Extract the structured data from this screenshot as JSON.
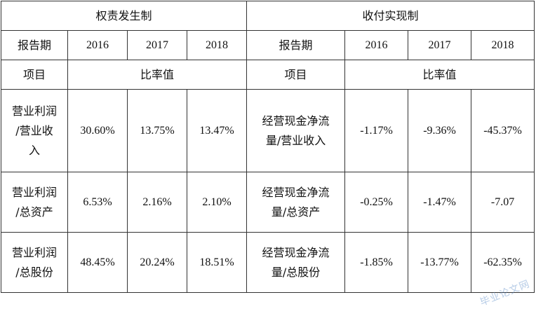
{
  "table": {
    "accrual_header": "权责发生制",
    "cash_header": "收付实现制",
    "period_label": "报告期",
    "years": [
      "2016",
      "2017",
      "2018"
    ],
    "item_label": "项目",
    "ratio_label": "比率值",
    "rows": [
      {
        "accrual_item_lines": [
          "营业利润",
          "/营业收",
          "入"
        ],
        "accrual_values": [
          "30.60%",
          "13.75%",
          "13.47%"
        ],
        "cash_item_lines": [
          "经营现金净流",
          "量/营业收入"
        ],
        "cash_values": [
          "-1.17%",
          "-9.36%",
          "-45.37%"
        ]
      },
      {
        "accrual_item_lines": [
          "营业利润",
          "/总资产"
        ],
        "accrual_values": [
          "6.53%",
          "2.16%",
          "2.10%"
        ],
        "cash_item_lines": [
          "经营现金净流",
          "量/总资产"
        ],
        "cash_values": [
          "-0.25%",
          "-1.47%",
          "-7.07"
        ]
      },
      {
        "accrual_item_lines": [
          "营业利润",
          "/总股份"
        ],
        "accrual_values": [
          "48.45%",
          "20.24%",
          "18.51%"
        ],
        "cash_item_lines": [
          "经营现金净流",
          "量/总股份"
        ],
        "cash_values": [
          "-1.85%",
          "-13.77%",
          "-62.35%"
        ]
      }
    ]
  },
  "watermark": "毕业论文网"
}
